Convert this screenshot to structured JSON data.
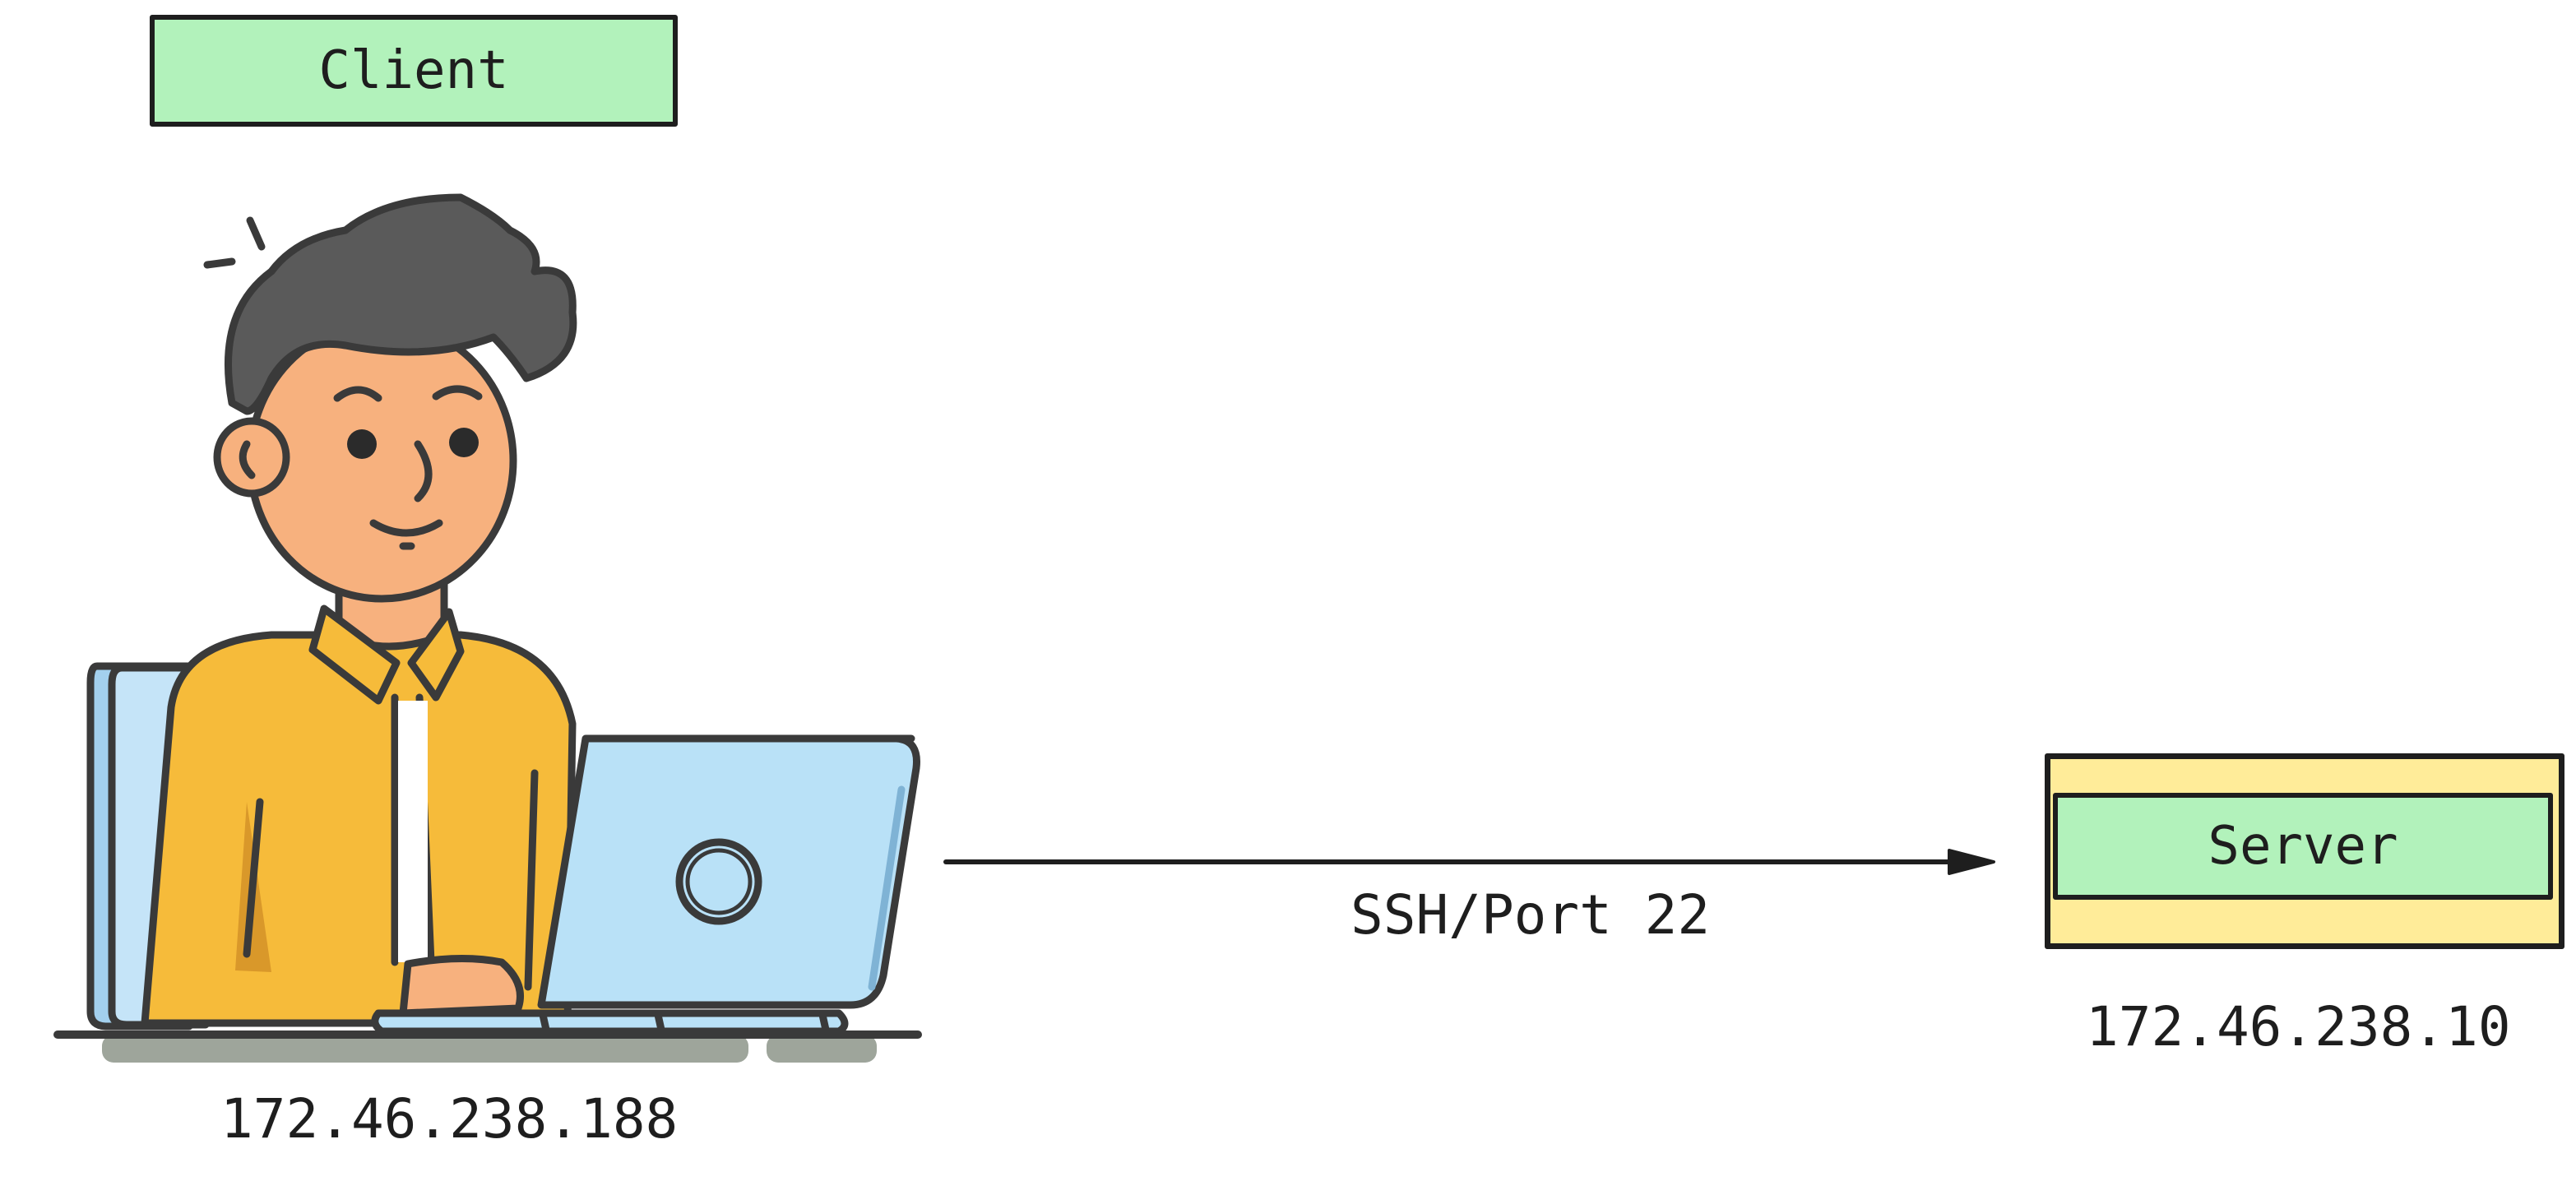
{
  "client": {
    "title": "Client",
    "ip": "172.46.238.188"
  },
  "server": {
    "title": "Server",
    "ip": "172.46.238.10"
  },
  "connection": {
    "label": "SSH/Port 22"
  },
  "colors": {
    "label_green": "#b2f2bb",
    "server_yellow": "#ffec99",
    "stroke": "#1e1e1e",
    "shirt": "#f6bb3a",
    "laptop": "#b9e1f7",
    "skin": "#f7b17e",
    "hair": "#5a5a5a"
  },
  "icons": {
    "client": "person-at-laptop-icon",
    "arrow": "arrow-right-icon"
  }
}
